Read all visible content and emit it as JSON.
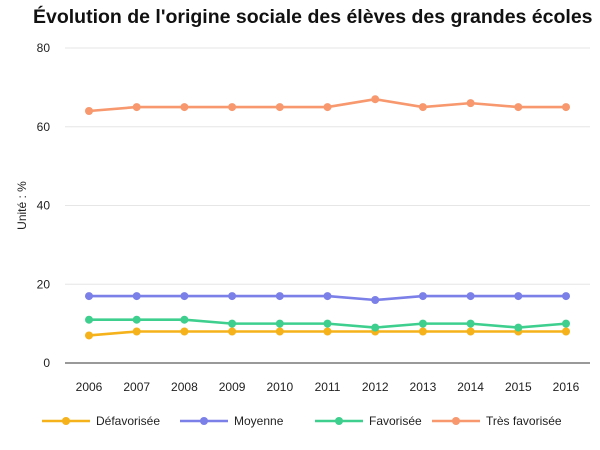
{
  "chart_data": {
    "type": "line",
    "title": "Évolution de l'origine sociale des élèves des grandes écoles",
    "xlabel": "",
    "ylabel": "Unité : %",
    "ylim": [
      0,
      80
    ],
    "yticks": [
      0,
      20,
      40,
      60,
      80
    ],
    "grid": true,
    "legend_position": "bottom",
    "x": [
      "2006",
      "2007",
      "2008",
      "2009",
      "2010",
      "2011",
      "2012",
      "2013",
      "2014",
      "2015",
      "2016"
    ],
    "series": [
      {
        "name": "Défavorisée",
        "color": "#f5b21a",
        "values": [
          7,
          8,
          8,
          8,
          8,
          8,
          8,
          8,
          8,
          8,
          8
        ]
      },
      {
        "name": "Moyenne",
        "color": "#7b7fe8",
        "values": [
          17,
          17,
          17,
          17,
          17,
          17,
          16,
          17,
          17,
          17,
          17
        ]
      },
      {
        "name": "Favorisée",
        "color": "#3ecf8e",
        "values": [
          11,
          11,
          11,
          10,
          10,
          10,
          9,
          10,
          10,
          9,
          10
        ]
      },
      {
        "name": "Très favorisée",
        "color": "#f7986e",
        "values": [
          64,
          65,
          65,
          65,
          65,
          65,
          67,
          65,
          66,
          65,
          65
        ]
      }
    ]
  }
}
